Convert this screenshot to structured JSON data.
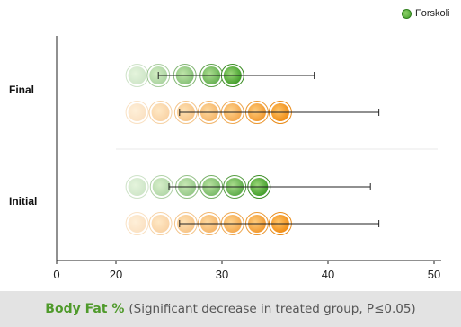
{
  "legend": {
    "label": "Forskoli",
    "color": "#4caf33"
  },
  "footer": {
    "metric": "Body Fat %",
    "note": "(Significant decrease in treated group, P≤0.05)"
  },
  "chart_data": {
    "type": "scatter",
    "categories": [
      "Final",
      "Initial"
    ],
    "xlim": [
      0,
      50
    ],
    "xticks": [
      0,
      10,
      20,
      30,
      40,
      50
    ],
    "xtick_labels": [
      "0",
      "20",
      "30",
      "40",
      "50"
    ],
    "xtick_values": [
      0,
      20,
      30,
      40,
      50
    ],
    "axis_break": [
      10,
      19
    ],
    "series": [
      {
        "name": "Forskoli",
        "color": "#4caf33",
        "groups": [
          {
            "category": "Final",
            "points": [
              22,
              24,
              26.5,
              29,
              31
            ],
            "mean": 31,
            "error_low": 24,
            "error_high": 38.7
          },
          {
            "category": "Initial",
            "points": [
              22,
              24.3,
              26.7,
              29,
              31.2,
              33.5
            ],
            "mean": 33.5,
            "error_low": 25,
            "error_high": 44
          }
        ]
      },
      {
        "color": "#f29a1f",
        "groups": [
          {
            "category": "Final",
            "points": [
              22,
              24.2,
              26.6,
              28.8,
              31,
              33.3,
              35.5
            ],
            "mean": 35.5,
            "error_low": 26,
            "error_high": 44.8
          },
          {
            "category": "Initial",
            "points": [
              22,
              24.2,
              26.6,
              28.8,
              31,
              33.3,
              35.5
            ],
            "mean": 35.5,
            "error_low": 26,
            "error_high": 44.8
          }
        ]
      }
    ],
    "grid": false,
    "legend_position": "top-right"
  }
}
